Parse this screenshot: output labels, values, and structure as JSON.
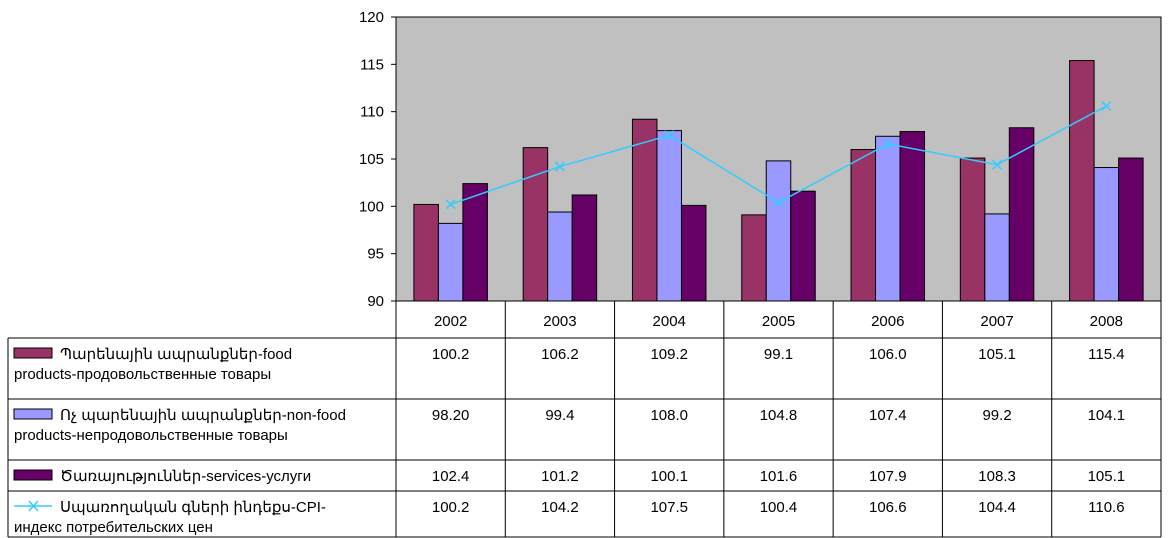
{
  "chart_data": {
    "type": "bar",
    "categories": [
      "2002",
      "2003",
      "2004",
      "2005",
      "2006",
      "2007",
      "2008"
    ],
    "ylim": [
      90,
      120
    ],
    "yticks": [
      90,
      95,
      100,
      105,
      110,
      115,
      120
    ],
    "title": "",
    "xlabel": "",
    "ylabel": "",
    "grid": false,
    "legend": "data-table",
    "series": [
      {
        "name_lines": [
          "Պարենային ապրանքներ-food",
          "products-продовольственные товары"
        ],
        "kind": "bar",
        "color": "#993366",
        "values": [
          100.2,
          106.2,
          109.2,
          99.1,
          106.0,
          105.1,
          115.4
        ],
        "labels": [
          "100.2",
          "106.2",
          "109.2",
          "99.1",
          "106.0",
          "105.1",
          "115.4"
        ]
      },
      {
        "name_lines": [
          "Ոչ պարենային ապրանքներ-non-food",
          "products-непродовольственные товары"
        ],
        "kind": "bar",
        "color": "#9999ff",
        "values": [
          98.2,
          99.4,
          108.0,
          104.8,
          107.4,
          99.2,
          104.1
        ],
        "labels": [
          "98.20",
          "99.4",
          "108.0",
          "104.8",
          "107.4",
          "99.2",
          "104.1"
        ]
      },
      {
        "name_lines": [
          "Ծառայություններ-services-услуги"
        ],
        "kind": "bar",
        "color": "#660066",
        "values": [
          102.4,
          101.2,
          100.1,
          101.6,
          107.9,
          108.3,
          105.1
        ],
        "labels": [
          "102.4",
          "101.2",
          "100.1",
          "101.6",
          "107.9",
          "108.3",
          "105.1"
        ]
      },
      {
        "name_lines": [
          "Սպառողական գների ինդեքս-CPI-",
          "индекс потребительских цен"
        ],
        "kind": "line",
        "color": "#33ccff",
        "marker": "x",
        "values": [
          100.2,
          104.2,
          107.5,
          100.4,
          106.6,
          104.4,
          110.6
        ],
        "labels": [
          "100.2",
          "104.2",
          "107.5",
          "100.4",
          "106.6",
          "104.4",
          "110.6"
        ]
      }
    ],
    "plot_background": "#c0c0c0"
  }
}
